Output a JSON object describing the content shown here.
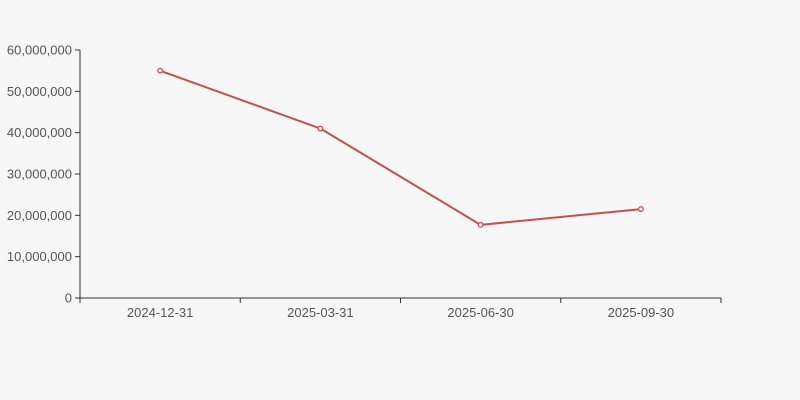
{
  "chart_data": {
    "type": "line",
    "title": "",
    "xlabel": "",
    "ylabel": "",
    "categories": [
      "2024-12-31",
      "2025-03-31",
      "2025-06-30",
      "2025-09-30"
    ],
    "series": [
      {
        "name": "value",
        "values": [
          55000000,
          41000000,
          17700000,
          21500000
        ]
      }
    ],
    "ylim": [
      0,
      60000000
    ],
    "ytick_step": 10000000,
    "ytick_labels": [
      "0",
      "10,000,000",
      "20,000,000",
      "30,000,000",
      "40,000,000",
      "50,000,000",
      "60,000,000"
    ],
    "grid": false,
    "legend": false,
    "marker": "open-circle",
    "colors": {
      "line": "#c5504e",
      "marker_fill": "#f7f7f7",
      "axis": "#333333",
      "label": "#555555",
      "background": "#f7f7f7"
    }
  }
}
